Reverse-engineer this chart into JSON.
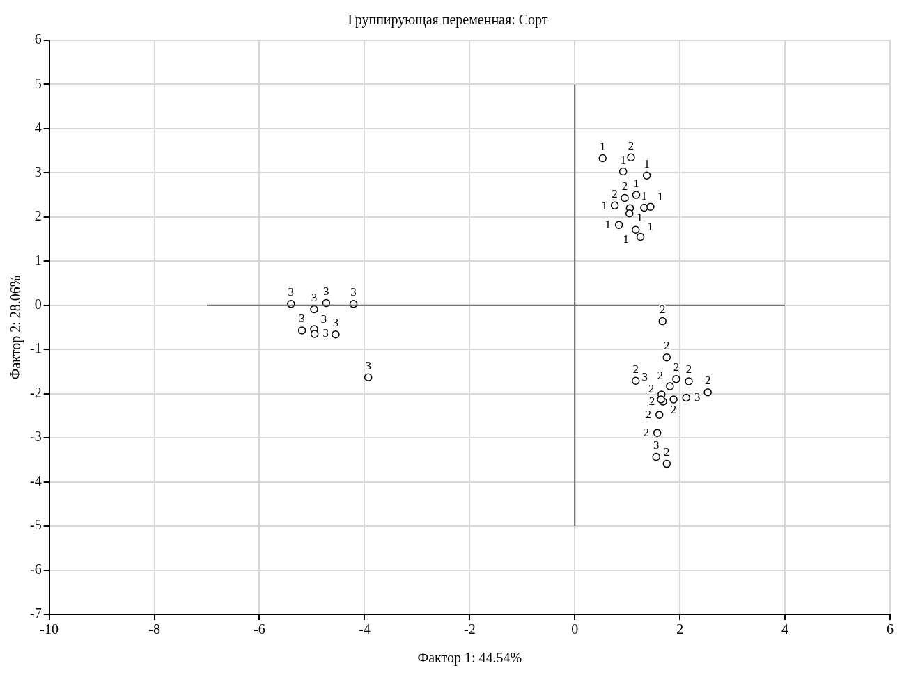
{
  "chart_data": {
    "type": "scatter",
    "title": "Группирующая переменная: Сорт",
    "xlabel": "Фактор 1: 44.54%",
    "ylabel": "Фактор 2: 28.06%",
    "xlim": [
      -10,
      6
    ],
    "xticks": [
      -10,
      -8,
      -6,
      -4,
      -2,
      0,
      2,
      4,
      6
    ],
    "ylim": [
      -7,
      6
    ],
    "yticks": [
      -7,
      -6,
      -5,
      -4,
      -3,
      -2,
      -1,
      0,
      1,
      2,
      3,
      4,
      5,
      6
    ],
    "grid": true,
    "legend": false,
    "marker": "circle",
    "series": [
      {
        "type": "line",
        "marker": "none",
        "color": "#555555",
        "x": [
          -7,
          4
        ],
        "values": [
          0,
          0
        ]
      },
      {
        "type": "line",
        "marker": "none",
        "color": "#555555",
        "x": [
          0,
          0
        ],
        "values": [
          -5,
          5
        ]
      },
      {
        "name": "1",
        "color": "#000000",
        "x": [
          0.53,
          0.92,
          1.37,
          1.17,
          1.32,
          1.44,
          0.84,
          1.05,
          1.04,
          1.16,
          1.25
        ],
        "values": [
          3.33,
          3.03,
          2.94,
          2.5,
          2.21,
          2.23,
          1.82,
          2.2,
          2.08,
          1.71,
          1.55
        ]
      },
      {
        "name": "2",
        "color": "#000000",
        "x": [
          1.07,
          0.76,
          0.95,
          1.67,
          1.75,
          1.16,
          2.17,
          2.53,
          1.88,
          1.68,
          1.64,
          1.81,
          1.93,
          1.61,
          1.57,
          1.75
        ],
        "values": [
          3.35,
          2.26,
          2.43,
          -0.36,
          -1.18,
          -1.71,
          -1.72,
          -1.97,
          -2.13,
          -2.18,
          -2.13,
          -1.83,
          -1.67,
          -2.48,
          -2.89,
          -3.59
        ]
      },
      {
        "name": "3",
        "color": "#000000",
        "x": [
          -5.4,
          -4.96,
          -4.73,
          -4.21,
          -5.19,
          -4.96,
          -4.95,
          -4.55,
          -3.93,
          2.12,
          1.65,
          1.55
        ],
        "values": [
          0.03,
          -0.09,
          0.05,
          0.03,
          -0.57,
          -0.54,
          -0.65,
          -0.66,
          -1.63,
          -2.09,
          -2.02,
          -3.43
        ]
      }
    ]
  }
}
